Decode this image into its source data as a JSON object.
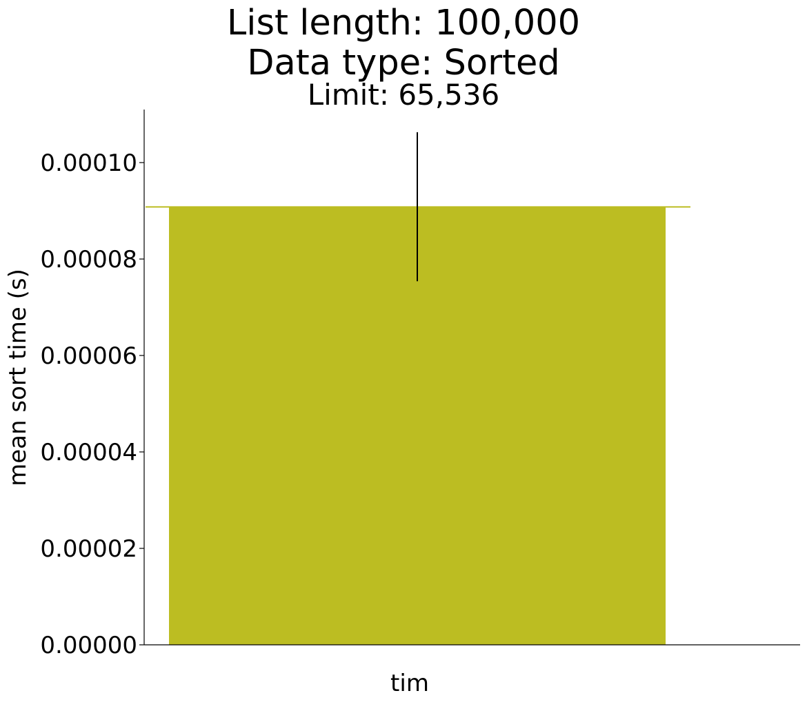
{
  "chart_data": {
    "type": "bar",
    "title_lines": [
      "List length: 100,000",
      "Data type: Sorted"
    ],
    "subtitle": "Limit: 65,536",
    "xlabel": "",
    "ylabel": "mean sort time (s)",
    "categories": [
      "tim"
    ],
    "series": [
      {
        "values": [
          9.08e-05
        ],
        "error_upper": [
          0.0001063
        ],
        "error_lower": [
          7.54e-05
        ],
        "color": "#bcbd22"
      }
    ],
    "ylim": [
      0,
      0.000111
    ],
    "y_ticks": [
      {
        "value": 0,
        "label": "0.00000"
      },
      {
        "value": 2e-05,
        "label": "0.00002"
      },
      {
        "value": 4e-05,
        "label": "0.00004"
      },
      {
        "value": 6e-05,
        "label": "0.00006"
      },
      {
        "value": 8e-05,
        "label": "0.00008"
      },
      {
        "value": 0.0001,
        "label": "0.00010"
      }
    ],
    "reference_line": {
      "value": 9.08e-05,
      "color": "#bcbd22"
    },
    "grid": false,
    "legend": "none",
    "spines": "left-bottom"
  }
}
